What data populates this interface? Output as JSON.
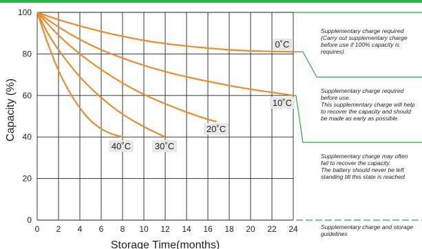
{
  "colors": {
    "curve": "#ef8a2a",
    "green": "#27a844",
    "top_bar": "#2fb34a",
    "grid": "#222222",
    "label_bg": "#e8e8e8"
  },
  "chart_data": {
    "type": "line",
    "xlabel": "Storage  Time(months)",
    "ylabel": "Capacity  (%)",
    "xlim": [
      0,
      24
    ],
    "ylim": [
      0,
      100
    ],
    "xticks": [
      "0",
      "2",
      "4",
      "6",
      "8",
      "10",
      "12",
      "14",
      "16",
      "18",
      "20",
      "22",
      "24"
    ],
    "yticks": [
      "0",
      "20",
      "40",
      "60",
      "80",
      "100"
    ],
    "grid": true,
    "series": [
      {
        "name": "0˚C",
        "x": [
          0,
          2,
          4,
          6,
          8,
          10,
          12,
          14,
          16,
          18,
          20,
          22,
          24
        ],
        "y": [
          100,
          96.5,
          93.5,
          90.8,
          88.5,
          86.5,
          85,
          83.8,
          82.8,
          82,
          81.5,
          81.2,
          81
        ]
      },
      {
        "name": "10˚C",
        "x": [
          0,
          2,
          4,
          6,
          8,
          10,
          12,
          14,
          16,
          18,
          20,
          22,
          24
        ],
        "y": [
          100,
          93,
          87,
          82,
          78,
          74.5,
          71.5,
          69,
          66.8,
          64.8,
          63,
          61.5,
          60
        ]
      },
      {
        "name": "20˚C",
        "x": [
          0,
          2,
          4,
          6,
          8,
          10,
          12,
          14,
          16,
          16.8
        ],
        "y": [
          100,
          89,
          80,
          72.5,
          66,
          60.5,
          56,
          52,
          48.5,
          47.5
        ]
      },
      {
        "name": "30˚C",
        "x": [
          0,
          1,
          2,
          4,
          6,
          8,
          10,
          12
        ],
        "y": [
          100,
          90,
          82,
          69,
          59,
          51,
          45,
          40
        ]
      },
      {
        "name": "40˚C",
        "x": [
          0,
          1,
          2,
          3,
          4,
          5,
          6,
          7,
          8
        ],
        "y": [
          100,
          85,
          72,
          62,
          54,
          48,
          44,
          41.5,
          40
        ]
      }
    ],
    "annotations": [
      {
        "text": "0˚C"
      },
      {
        "text": "10˚C"
      },
      {
        "text": "20˚C"
      },
      {
        "text": "30˚C"
      },
      {
        "text": "40˚C"
      }
    ]
  },
  "notes": [
    {
      "lines": [
        "Supplementary charge required",
        "(Carry out supplementary charge",
        "before use if 100% capacity is",
        "requires)"
      ]
    },
    {
      "lines": [
        "Supplementary charge required",
        "before use.",
        "This supplementary charge will help",
        "to recover the capacity and should",
        "be made  as early as possible."
      ]
    },
    {
      "lines": [
        "Supplementary charge may often",
        "fail to recover the capacity.",
        "The battery should never be left",
        "standing till this state is reached"
      ]
    },
    {
      "lines": [
        "Supplementary charge and storage",
        "guidelines"
      ]
    }
  ]
}
